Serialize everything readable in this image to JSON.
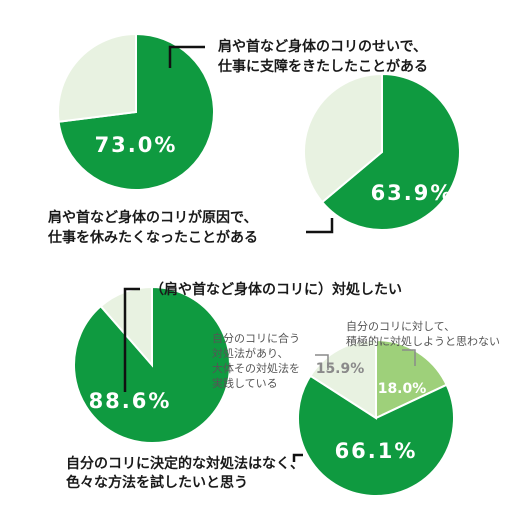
{
  "colors": {
    "green": "#0f9a40",
    "pale": "#e8f2e1",
    "light_green": "#9ed07a",
    "line": "#111111",
    "gray_line": "#8a8a8a"
  },
  "chart_data": [
    {
      "type": "pie",
      "title_lines": [
        "肩や首など身体のコリのせいで、",
        "仕事に支障をきたしたことがある"
      ],
      "slices": [
        {
          "label": "73.0%",
          "value": 73.0,
          "color": "#0f9a40"
        },
        {
          "label": "",
          "value": 27.0,
          "color": "#e8f2e1"
        }
      ]
    },
    {
      "type": "pie",
      "title_lines": [
        "肩や首など身体のコリが原因で、",
        "仕事を休みたくなったことがある"
      ],
      "slices": [
        {
          "label": "63.9%",
          "value": 63.9,
          "color": "#0f9a40"
        },
        {
          "label": "",
          "value": 36.1,
          "color": "#e8f2e1"
        }
      ]
    },
    {
      "type": "pie",
      "title_lines": [
        "（肩や首など身体のコリに）対処したい"
      ],
      "slices": [
        {
          "label": "88.6%",
          "value": 88.6,
          "color": "#0f9a40"
        },
        {
          "label": "",
          "value": 11.4,
          "color": "#e8f2e1"
        }
      ]
    },
    {
      "type": "pie",
      "slices": [
        {
          "label": "18.0%",
          "value": 18.0,
          "color": "#9ed07a",
          "caption_lines": [
            "自分のコリに対して、",
            "積極的に対処しようと思わない"
          ]
        },
        {
          "label": "66.1%",
          "value": 66.1,
          "color": "#0f9a40",
          "caption_lines": [
            "自分のコリに決定的な対処法はなく、",
            "色々な方法を試したいと思う"
          ]
        },
        {
          "label": "15.9%",
          "value": 15.9,
          "color": "#e8f2e1",
          "caption_lines": [
            "自分のコリに合う",
            "対処法があり、",
            "大体その対処法を",
            "実践している"
          ]
        }
      ]
    }
  ]
}
